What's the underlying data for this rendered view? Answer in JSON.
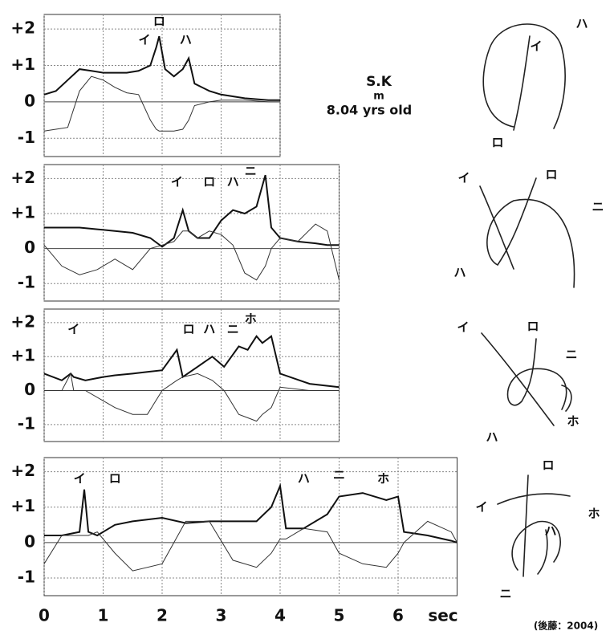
{
  "subject": {
    "name": "S.K",
    "sex": "m",
    "age": "8.04 yrs old"
  },
  "source": "(後藤：2004)",
  "chart_data": [
    {
      "type": "line",
      "xlim": [
        0,
        4
      ],
      "xticks": [
        0,
        1,
        2,
        3,
        4
      ],
      "show_xtick_labels": false,
      "ylim": [
        -1.5,
        2.4
      ],
      "yticks": [
        {
          "value": 2,
          "label": "+2"
        },
        {
          "value": 1,
          "label": "+1"
        },
        0,
        -1
      ],
      "grid": true,
      "x": [
        0,
        0.2,
        0.4,
        0.6,
        0.8,
        1.0,
        1.2,
        1.4,
        1.6,
        1.8,
        1.9,
        1.95,
        2.05,
        2.2,
        2.35,
        2.45,
        2.55,
        2.8,
        3.0,
        3.4,
        3.8,
        4.0
      ],
      "series": [
        {
          "color": "#111111",
          "values": [
            0.2,
            0.3,
            0.6,
            0.9,
            0.85,
            0.8,
            0.8,
            0.8,
            0.85,
            1.0,
            1.5,
            1.8,
            0.9,
            0.7,
            0.9,
            1.2,
            0.5,
            0.3,
            0.2,
            0.1,
            0.05,
            0.05
          ]
        },
        {
          "color": "#333333",
          "values": [
            -0.8,
            -0.75,
            -0.7,
            0.3,
            0.7,
            0.6,
            0.4,
            0.25,
            0.2,
            -0.5,
            -0.75,
            -0.8,
            -0.8,
            -0.8,
            -0.75,
            -0.5,
            -0.1,
            0.0,
            0.05,
            0.05,
            0.0,
            0.0
          ]
        }
      ],
      "annotations": [
        {
          "text": "ロ",
          "x": 1.95,
          "y": 2.2
        },
        {
          "text": "イ",
          "x": 1.7,
          "y": 1.7
        },
        {
          "text": "ハ",
          "x": 2.4,
          "y": 1.7
        }
      ],
      "stroke_labels": [
        "ハ",
        "イ",
        "ロ"
      ]
    },
    {
      "type": "line",
      "xlim": [
        0,
        5
      ],
      "xticks": [
        0,
        1,
        2,
        3,
        4,
        5
      ],
      "show_xtick_labels": false,
      "ylim": [
        -1.5,
        2.4
      ],
      "yticks": [
        {
          "value": 2,
          "label": "+2"
        },
        {
          "value": 1,
          "label": "+1"
        },
        0,
        -1
      ],
      "grid": true,
      "x": [
        0,
        0.3,
        0.6,
        0.9,
        1.2,
        1.5,
        1.8,
        2.0,
        2.2,
        2.35,
        2.45,
        2.6,
        2.8,
        3.0,
        3.2,
        3.4,
        3.6,
        3.75,
        3.85,
        4.0,
        4.3,
        4.6,
        4.8,
        5.0
      ],
      "series": [
        {
          "color": "#111111",
          "values": [
            0.6,
            0.6,
            0.6,
            0.55,
            0.5,
            0.45,
            0.3,
            0.05,
            0.3,
            1.1,
            0.5,
            0.3,
            0.3,
            0.8,
            1.1,
            1.0,
            1.2,
            2.1,
            0.6,
            0.3,
            0.2,
            0.15,
            0.1,
            0.1
          ]
        },
        {
          "color": "#333333",
          "values": [
            0.1,
            -0.5,
            -0.75,
            -0.6,
            -0.3,
            -0.6,
            0.0,
            0.1,
            0.2,
            0.5,
            0.5,
            0.3,
            0.5,
            0.4,
            0.1,
            -0.7,
            -0.9,
            -0.5,
            0.0,
            0.3,
            0.2,
            0.7,
            0.5,
            -0.9
          ]
        }
      ],
      "annotations": [
        {
          "text": "イ",
          "x": 2.25,
          "y": 1.9
        },
        {
          "text": "ロ",
          "x": 2.8,
          "y": 1.9
        },
        {
          "text": "ハ",
          "x": 3.2,
          "y": 1.9
        },
        {
          "text": "ニ",
          "x": 3.5,
          "y": 2.2
        }
      ],
      "stroke_labels": [
        "イ",
        "ロ",
        "ニ",
        "ハ"
      ]
    },
    {
      "type": "line",
      "xlim": [
        0,
        5
      ],
      "xticks": [
        0,
        1,
        2,
        3,
        4,
        5
      ],
      "show_xtick_labels": false,
      "ylim": [
        -1.5,
        2.4
      ],
      "yticks": [
        {
          "value": 2,
          "label": "+2"
        },
        {
          "value": 1,
          "label": "+1"
        },
        0,
        -1
      ],
      "grid": true,
      "x": [
        0,
        0.3,
        0.45,
        0.5,
        0.7,
        1.0,
        1.2,
        1.5,
        1.75,
        2.0,
        2.25,
        2.35,
        2.6,
        2.85,
        3.05,
        3.3,
        3.45,
        3.6,
        3.7,
        3.85,
        4.0,
        4.5,
        5.0
      ],
      "series": [
        {
          "color": "#111111",
          "values": [
            0.5,
            0.3,
            0.5,
            0.4,
            0.3,
            0.4,
            0.45,
            0.5,
            0.55,
            0.6,
            1.2,
            0.4,
            0.7,
            1.0,
            0.7,
            1.3,
            1.2,
            1.6,
            1.4,
            1.6,
            0.5,
            0.2,
            0.1
          ]
        },
        {
          "color": "#333333",
          "values": [
            0,
            0,
            0.5,
            0,
            0,
            -0.3,
            -0.5,
            -0.7,
            -0.7,
            0,
            0.3,
            0.4,
            0.5,
            0.3,
            0,
            -0.7,
            -0.8,
            -0.9,
            -0.7,
            -0.5,
            0.1,
            0,
            0
          ]
        }
      ],
      "annotations": [
        {
          "text": "イ",
          "x": 0.5,
          "y": 1.8
        },
        {
          "text": "ロ",
          "x": 2.45,
          "y": 1.8
        },
        {
          "text": "ハ",
          "x": 2.8,
          "y": 1.8
        },
        {
          "text": "ニ",
          "x": 3.2,
          "y": 1.8
        },
        {
          "text": "ホ",
          "x": 3.5,
          "y": 2.1
        }
      ],
      "stroke_labels": [
        "イ",
        "ロ",
        "ニ",
        "ホ",
        "ハ"
      ]
    },
    {
      "type": "line",
      "xlim": [
        0,
        7
      ],
      "xticks": [
        0,
        1,
        2,
        3,
        4,
        5,
        6
      ],
      "show_xtick_labels": true,
      "xlabel": "sec",
      "ylim": [
        -1.5,
        2.4
      ],
      "yticks": [
        {
          "value": 2,
          "label": "+2"
        },
        {
          "value": 1,
          "label": "+1"
        },
        0,
        -1
      ],
      "grid": true,
      "x": [
        0,
        0.3,
        0.6,
        0.68,
        0.75,
        0.9,
        1.2,
        1.5,
        2.0,
        2.4,
        2.8,
        3.2,
        3.6,
        3.85,
        4.0,
        4.1,
        4.4,
        4.8,
        5.0,
        5.4,
        5.8,
        6.0,
        6.1,
        6.5,
        6.9,
        7.0
      ],
      "series": [
        {
          "color": "#111111",
          "values": [
            0.2,
            0.2,
            0.3,
            1.5,
            0.3,
            0.2,
            0.5,
            0.6,
            0.7,
            0.55,
            0.6,
            0.6,
            0.6,
            1.0,
            1.6,
            0.4,
            0.4,
            0.8,
            1.3,
            1.4,
            1.2,
            1.3,
            0.3,
            0.2,
            0.05,
            0.0
          ]
        },
        {
          "color": "#333333",
          "values": [
            -0.6,
            0.2,
            0.2,
            0.2,
            0.2,
            0.3,
            -0.3,
            -0.8,
            -0.6,
            0.6,
            0.6,
            -0.5,
            -0.7,
            -0.3,
            0.1,
            0.1,
            0.4,
            0.3,
            -0.3,
            -0.6,
            -0.7,
            -0.3,
            0,
            0.6,
            0.3,
            0
          ]
        }
      ],
      "annotations": [
        {
          "text": "イ",
          "x": 0.6,
          "y": 1.8
        },
        {
          "text": "ロ",
          "x": 1.2,
          "y": 1.8
        },
        {
          "text": "ハ",
          "x": 4.4,
          "y": 1.8
        },
        {
          "text": "ニ",
          "x": 5.0,
          "y": 1.9
        },
        {
          "text": "ホ",
          "x": 5.75,
          "y": 1.8
        }
      ],
      "stroke_labels": [
        "ロ",
        "イ",
        "ホ",
        "ハ",
        "ニ"
      ]
    }
  ]
}
